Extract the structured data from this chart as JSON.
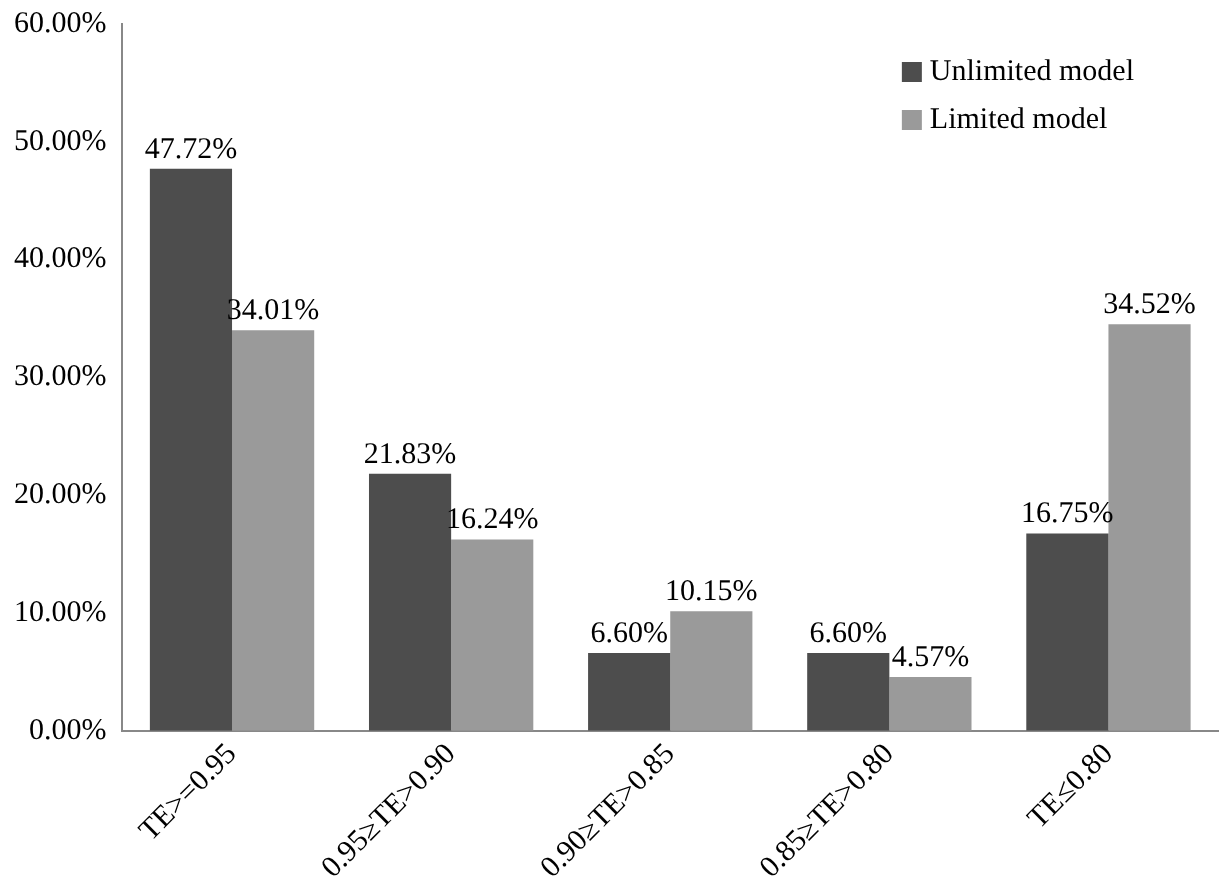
{
  "chart_data": {
    "type": "bar",
    "categories": [
      "TE>=0.95",
      "0.95≥TE>0.90",
      "0.90≥TE>0.85",
      "0.85≥TE>0.80",
      "TE≤0.80"
    ],
    "series": [
      {
        "name": "Unlimited model",
        "color": "#4d4d4d",
        "values": [
          47.72,
          21.83,
          6.6,
          6.6,
          16.75
        ],
        "value_labels": [
          "47.72%",
          "21.83%",
          "6.60%",
          "6.60%",
          "16.75%"
        ]
      },
      {
        "name": "Limited model",
        "color": "#9a9a9a",
        "values": [
          34.01,
          16.24,
          10.15,
          4.57,
          34.52
        ],
        "value_labels": [
          "34.01%",
          "16.24%",
          "10.15%",
          "4.57%",
          "34.52%"
        ]
      }
    ],
    "ylim": [
      0,
      60
    ],
    "yticks": [
      {
        "value": 0,
        "label": "0.00%"
      },
      {
        "value": 10,
        "label": "10.00%"
      },
      {
        "value": 20,
        "label": "20.00%"
      },
      {
        "value": 30,
        "label": "30.00%"
      },
      {
        "value": 40,
        "label": "40.00%"
      },
      {
        "value": 50,
        "label": "50.00%"
      },
      {
        "value": 60,
        "label": "60.00%"
      }
    ],
    "grid": false,
    "legend": "top right"
  }
}
